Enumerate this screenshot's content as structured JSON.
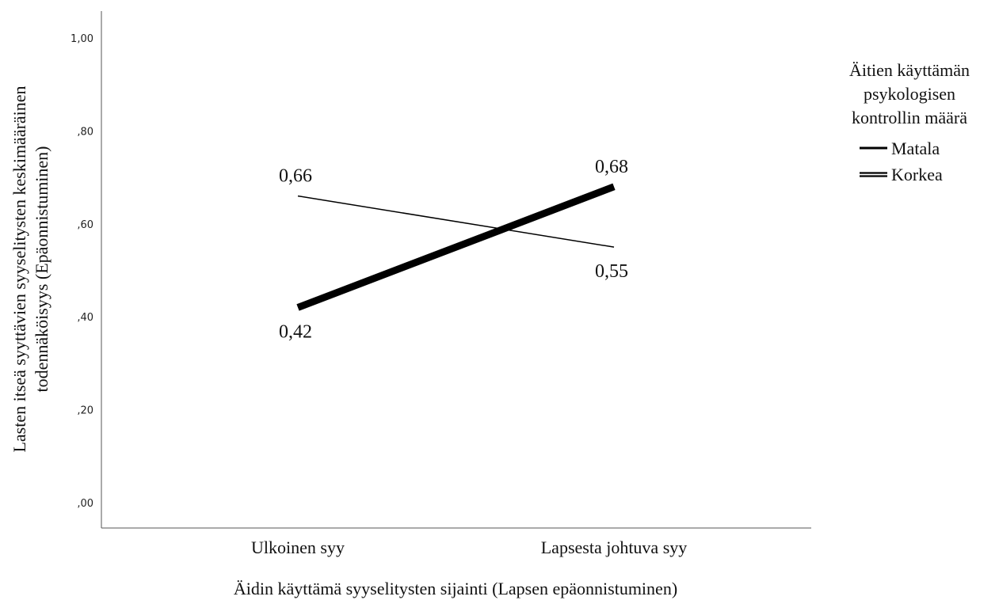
{
  "chart_data": {
    "type": "line",
    "title": "",
    "xlabel": "Äidin käyttämä syyselitysten sijainti (Lapsen epäonnistuminen)",
    "ylabel_lines": [
      "Lasten itseä syyttävien syyselitysten keskimääräinen",
      "todennäköisyys (Epäonnistuminen)"
    ],
    "categories": [
      "Ulkoinen syy",
      "Lapsesta johtuva syy"
    ],
    "ylim": [
      0,
      1
    ],
    "yticks": [
      0,
      0.2,
      0.4,
      0.6,
      0.8,
      1.0
    ],
    "ytick_labels": [
      ",00",
      ",20",
      ",40",
      ",60",
      ",80",
      "1,00"
    ],
    "grid": false,
    "legend": {
      "title_lines": [
        "Äitien käyttämän",
        "psykologisen",
        "kontrollin määrä"
      ],
      "placement": "right"
    },
    "series": [
      {
        "name": "Matala",
        "values": [
          0.66,
          0.55
        ],
        "labels": [
          "0,66",
          "0,55"
        ],
        "style": "thin"
      },
      {
        "name": "Korkea",
        "values": [
          0.42,
          0.68
        ],
        "labels": [
          "0,42",
          "0,68"
        ],
        "style": "thick"
      }
    ]
  }
}
